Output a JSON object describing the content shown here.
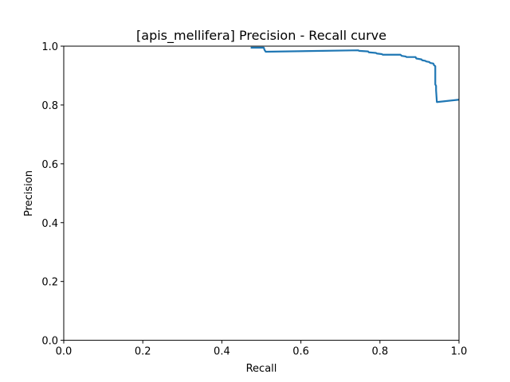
{
  "chart_data": {
    "type": "line",
    "title": "[apis_mellifera] Precision - Recall curve",
    "xlabel": "Recall",
    "ylabel": "Precision",
    "xlim": [
      0,
      1
    ],
    "ylim": [
      0,
      1
    ],
    "grid": false,
    "line_color": "#1f77b4",
    "xticks": [
      "0.0",
      "0.2",
      "0.4",
      "0.6",
      "0.8",
      "1.0"
    ],
    "yticks": [
      "0.0",
      "0.2",
      "0.4",
      "0.6",
      "0.8",
      "1.0"
    ],
    "series": [
      {
        "x": [
          0.473,
          0.506,
          0.508,
          0.511,
          0.745,
          0.747,
          0.77,
          0.772,
          0.79,
          0.792,
          0.805,
          0.807,
          0.852,
          0.855,
          0.865,
          0.867,
          0.89,
          0.892,
          0.905,
          0.907,
          0.915,
          0.917,
          0.925,
          0.927,
          0.935,
          0.937,
          0.94,
          0.94,
          0.942,
          0.942,
          0.944,
          1.0
        ],
        "y": [
          0.995,
          0.995,
          0.987,
          0.981,
          0.986,
          0.984,
          0.982,
          0.979,
          0.977,
          0.975,
          0.973,
          0.971,
          0.971,
          0.967,
          0.965,
          0.963,
          0.963,
          0.958,
          0.955,
          0.952,
          0.95,
          0.948,
          0.946,
          0.943,
          0.941,
          0.935,
          0.932,
          0.87,
          0.865,
          0.85,
          0.81,
          0.818
        ]
      }
    ]
  }
}
